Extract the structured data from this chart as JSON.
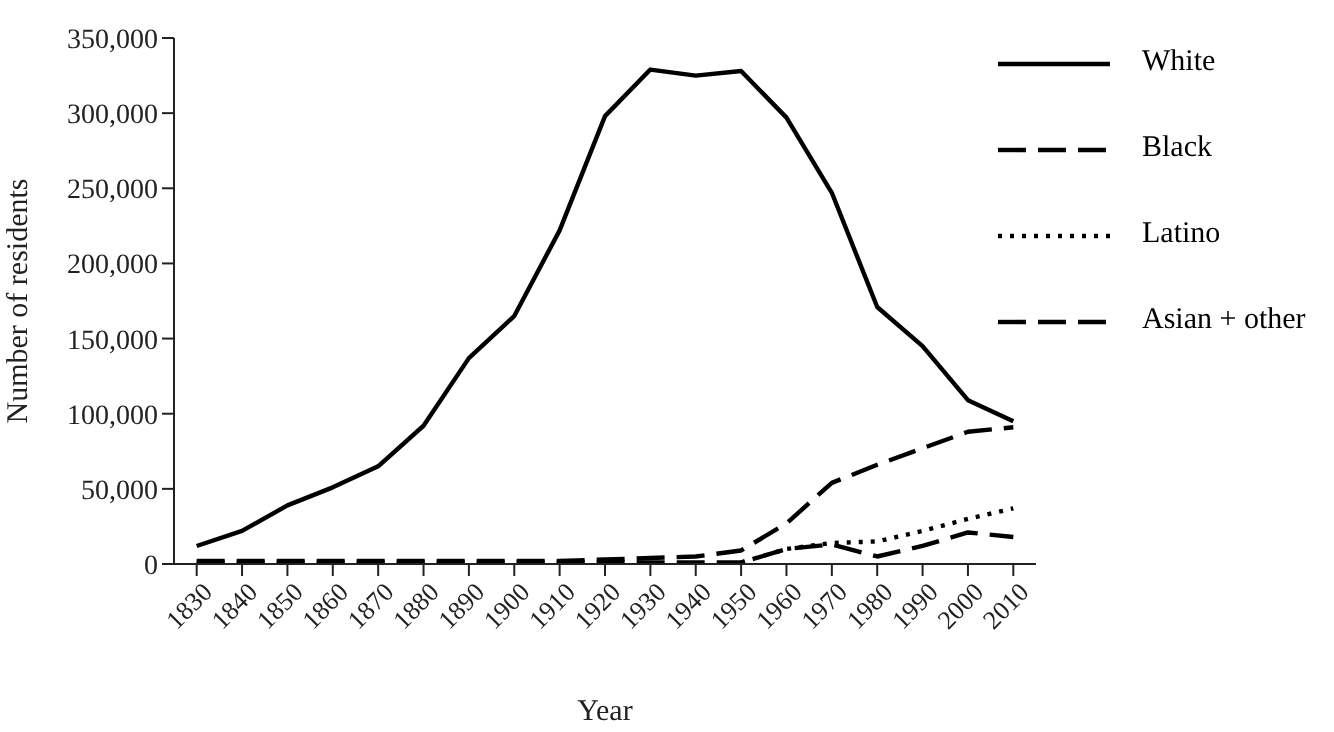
{
  "chart_data": {
    "type": "line",
    "xlabel": "Year",
    "ylabel": "Number of residents",
    "x": [
      1830,
      1840,
      1850,
      1860,
      1870,
      1880,
      1890,
      1900,
      1910,
      1920,
      1930,
      1940,
      1950,
      1960,
      1970,
      1980,
      1990,
      2000,
      2010
    ],
    "xlim": [
      1825,
      2015
    ],
    "xticks": [
      1830,
      1840,
      1850,
      1860,
      1870,
      1880,
      1890,
      1900,
      1910,
      1920,
      1930,
      1940,
      1950,
      1960,
      1970,
      1980,
      1990,
      2000,
      2010
    ],
    "ylim": [
      0,
      350000
    ],
    "yticks": [
      {
        "value": 0,
        "label": "0"
      },
      {
        "value": 50000,
        "label": "50,000"
      },
      {
        "value": 100000,
        "label": "100,000"
      },
      {
        "value": 150000,
        "label": "150,000"
      },
      {
        "value": 200000,
        "label": "200,000"
      },
      {
        "value": 250000,
        "label": "250,000"
      },
      {
        "value": 300000,
        "label": "300,000"
      },
      {
        "value": 350000,
        "label": "350,000"
      }
    ],
    "series": [
      {
        "name": "White",
        "color": "#000000",
        "line_style": "solid",
        "values": [
          12000,
          22000,
          39000,
          51000,
          65000,
          92000,
          137000,
          165000,
          222000,
          298000,
          329000,
          325000,
          328000,
          297000,
          247000,
          171000,
          145000,
          109000,
          95000
        ]
      },
      {
        "name": "Black",
        "color": "#000000",
        "line_style": "dashed",
        "values": [
          2000,
          2000,
          2000,
          2000,
          2000,
          2000,
          2000,
          2000,
          2000,
          3000,
          4000,
          5000,
          9000,
          27000,
          54000,
          66000,
          77000,
          88000,
          91000
        ]
      },
      {
        "name": "Latino",
        "color": "#000000",
        "line_style": "dotted",
        "values": [
          null,
          null,
          null,
          null,
          null,
          null,
          null,
          null,
          null,
          null,
          null,
          null,
          1000,
          10000,
          14000,
          15000,
          22000,
          30000,
          37000
        ]
      },
      {
        "name": "Asian + other",
        "color": "#000000",
        "line_style": "dashed",
        "values": [
          1000,
          1000,
          1000,
          1000,
          1000,
          1000,
          1000,
          1000,
          1000,
          1000,
          1000,
          1000,
          1000,
          10000,
          13000,
          5000,
          12000,
          21000,
          18000
        ]
      }
    ],
    "grid": false,
    "legend": "top right",
    "marker": "none"
  }
}
